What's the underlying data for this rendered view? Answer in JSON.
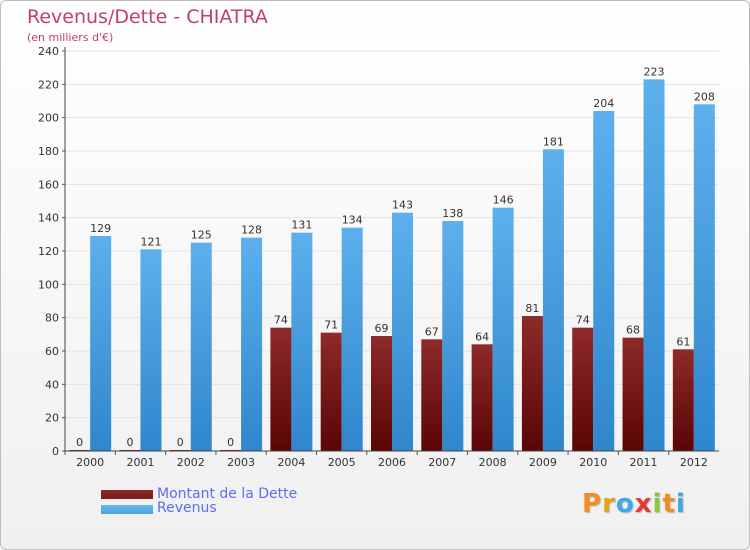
{
  "colors": {
    "debt": "#7a1a1a",
    "revenue": "#4aa0e0",
    "title": "#c53d6b",
    "legend_text": "#5b6df0"
  },
  "chart_data": {
    "type": "bar",
    "title": "Revenus/Dette - CHIATRA",
    "subtitle": "(en milliers d'€)",
    "categories": [
      "2000",
      "2001",
      "2002",
      "2003",
      "2004",
      "2005",
      "2006",
      "2007",
      "2008",
      "2009",
      "2010",
      "2011",
      "2012"
    ],
    "series": [
      {
        "name": "Montant de la Dette",
        "color": "#7a1a1a",
        "values": [
          0,
          0,
          0,
          0,
          74,
          71,
          69,
          67,
          64,
          81,
          74,
          68,
          61
        ]
      },
      {
        "name": "Revenus",
        "color": "#4aa0e0",
        "values": [
          129,
          121,
          125,
          128,
          131,
          134,
          143,
          138,
          146,
          181,
          204,
          223,
          208
        ]
      }
    ],
    "yticks": [
      0,
      20,
      40,
      60,
      80,
      100,
      120,
      140,
      160,
      180,
      200,
      220,
      240
    ],
    "ylim": [
      0,
      240
    ],
    "grid": true,
    "legend_position": "bottom-left"
  },
  "logo": {
    "letters": [
      "P",
      "r",
      "o",
      "x",
      "i",
      "t",
      "i"
    ],
    "colors": [
      "#f28c1e",
      "#e8a21b",
      "#3fa9e0",
      "#e63a2d",
      "#8cc63f",
      "#f28c1e",
      "#3fa9e0"
    ]
  }
}
